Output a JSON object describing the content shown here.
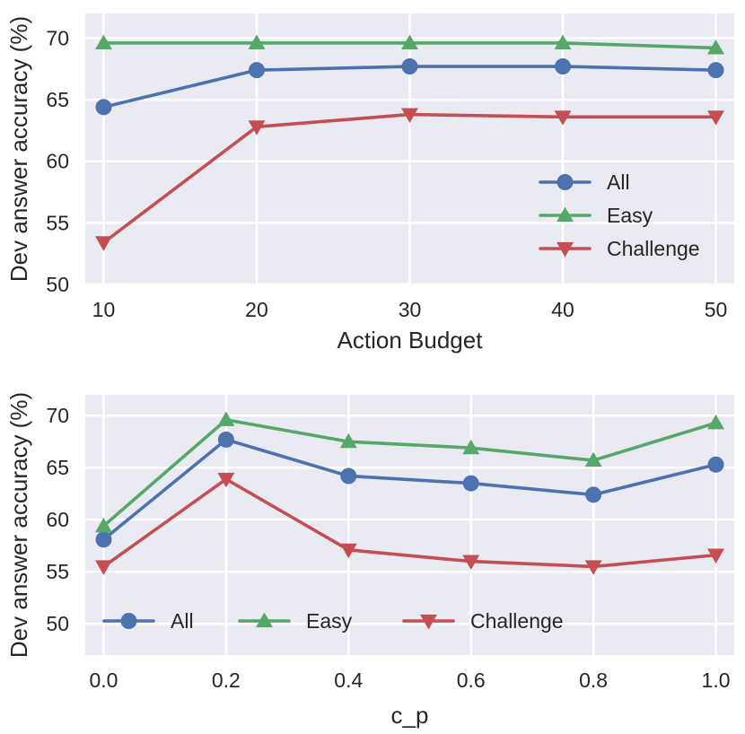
{
  "chart_data": [
    {
      "type": "line",
      "id": "top",
      "xlabel": "Action Budget",
      "ylabel": "Dev answer accuracy (%)",
      "x": [
        10,
        20,
        30,
        40,
        50
      ],
      "xticks": [
        "10",
        "20",
        "30",
        "40",
        "50"
      ],
      "xlim": [
        8.8,
        51.2
      ],
      "yticks": [
        "50",
        "55",
        "60",
        "65",
        "70"
      ],
      "ylim": [
        50,
        72
      ],
      "grid": true,
      "legend": "lower-right",
      "series": [
        {
          "name": "All",
          "color": "#4C72B0",
          "marker": "circle",
          "values": [
            64.4,
            67.4,
            67.7,
            67.7,
            67.4
          ]
        },
        {
          "name": "Easy",
          "color": "#55A868",
          "marker": "triangle-up",
          "values": [
            69.6,
            69.6,
            69.6,
            69.6,
            69.2
          ]
        },
        {
          "name": "Challenge",
          "color": "#C44E52",
          "marker": "triangle-down",
          "values": [
            53.4,
            62.8,
            63.8,
            63.6,
            63.6
          ]
        }
      ]
    },
    {
      "type": "line",
      "id": "bottom",
      "xlabel": "c_p",
      "ylabel": "Dev answer accuracy (%)",
      "x": [
        0.0,
        0.2,
        0.4,
        0.6,
        0.8,
        1.0
      ],
      "xticks": [
        "0.0",
        "0.2",
        "0.4",
        "0.6",
        "0.8",
        "1.0"
      ],
      "xlim": [
        -0.03,
        1.03
      ],
      "yticks": [
        "50",
        "55",
        "60",
        "65",
        "70"
      ],
      "ylim": [
        47,
        72
      ],
      "grid": true,
      "legend": "lower-center",
      "series": [
        {
          "name": "All",
          "color": "#4C72B0",
          "marker": "circle",
          "values": [
            58.1,
            67.7,
            64.2,
            63.5,
            62.4,
            65.3
          ]
        },
        {
          "name": "Easy",
          "color": "#55A868",
          "marker": "triangle-up",
          "values": [
            59.4,
            69.6,
            67.5,
            66.9,
            65.7,
            69.3
          ]
        },
        {
          "name": "Challenge",
          "color": "#C44E52",
          "marker": "triangle-down",
          "values": [
            55.5,
            63.9,
            57.1,
            56.0,
            55.5,
            56.6
          ]
        }
      ]
    }
  ]
}
